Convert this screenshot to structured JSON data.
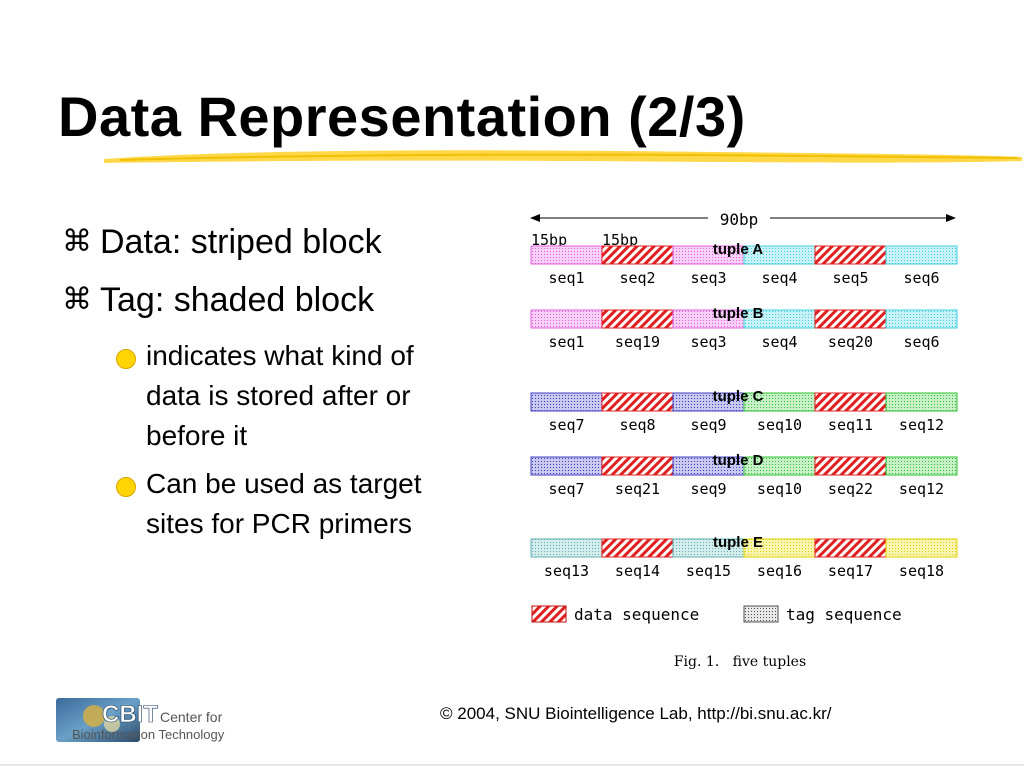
{
  "slide": {
    "title": "Data Representation (2/3)",
    "bullet_icon": "command-key-icon",
    "sub_bullet_icon": "yellow-circle-icon"
  },
  "bullets": [
    {
      "text": "Data: striped block"
    },
    {
      "text": "Tag: shaded block"
    }
  ],
  "sub_bullets": [
    {
      "lines": [
        "indicates what kind of",
        "data is stored after or",
        "before it"
      ]
    },
    {
      "lines": [
        "Can be used as target",
        "sites for PCR primers"
      ]
    }
  ],
  "figure": {
    "span_label": "90bp",
    "seg_labels": [
      "15bp",
      "15bp"
    ],
    "caption": "Fig. 1.   five tuples",
    "legend": {
      "data": "data sequence",
      "tag": "tag sequence"
    },
    "colors": {
      "pink": "#e060e0",
      "cyan": "#40d0e0",
      "blue": "#4040c0",
      "green": "#30c030",
      "teal": "#60b0b0",
      "yellow": "#e0d000",
      "red": "#e02020"
    },
    "tuples": [
      {
        "label": "tuple A",
        "seqs": [
          "seq1",
          "seq2",
          "seq3",
          "seq4",
          "seq5",
          "seq6"
        ],
        "colors": [
          "pink",
          "red",
          "pink",
          "cyan",
          "red",
          "cyan"
        ]
      },
      {
        "label": "tuple B",
        "seqs": [
          "seq1",
          "seq19",
          "seq3",
          "seq4",
          "seq20",
          "seq6"
        ],
        "colors": [
          "pink",
          "red",
          "pink",
          "cyan",
          "red",
          "cyan"
        ]
      },
      {
        "label": "tuple C",
        "seqs": [
          "seq7",
          "seq8",
          "seq9",
          "seq10",
          "seq11",
          "seq12"
        ],
        "colors": [
          "blue",
          "red",
          "blue",
          "green",
          "red",
          "green"
        ]
      },
      {
        "label": "tuple D",
        "seqs": [
          "seq7",
          "seq21",
          "seq9",
          "seq10",
          "seq22",
          "seq12"
        ],
        "colors": [
          "blue",
          "red",
          "blue",
          "green",
          "red",
          "green"
        ]
      },
      {
        "label": "tuple E",
        "seqs": [
          "seq13",
          "seq14",
          "seq15",
          "seq16",
          "seq17",
          "seq18"
        ],
        "colors": [
          "teal",
          "red",
          "teal",
          "yellow",
          "red",
          "yellow"
        ]
      }
    ]
  },
  "footer": {
    "copyright": "© 2004, SNU Biointelligence Lab, http://bi.snu.ac.kr/",
    "logo_main": "CBIT",
    "logo_sub1": "Center for",
    "logo_sub2": "Bioinformation Technology"
  }
}
